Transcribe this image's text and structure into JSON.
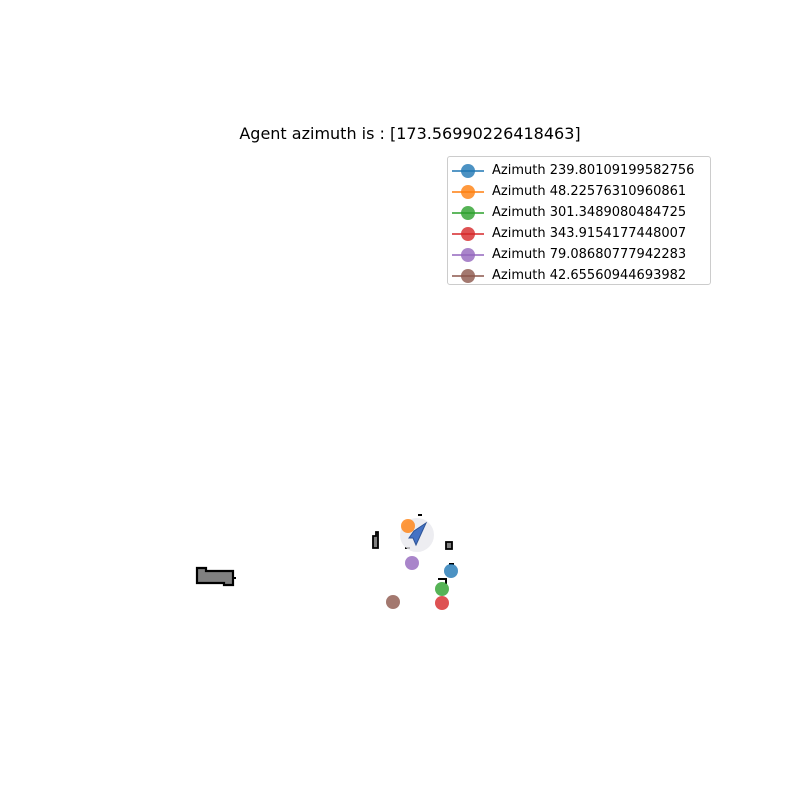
{
  "chart_data": {
    "type": "scatter",
    "title": "Agent azimuth is : [173.56990226418463]",
    "xlabel": "",
    "ylabel": "",
    "grid": false,
    "axes_visible": false,
    "legend_position": "top-right",
    "series": [
      {
        "name": "Azimuth 239.80109199582756",
        "color": "#1f77b4",
        "x": [
          451
        ],
        "y": [
          571
        ]
      },
      {
        "name": "Azimuth 48.22576310960861",
        "color": "#ff7f0e",
        "x": [
          408
        ],
        "y": [
          526
        ]
      },
      {
        "name": "Azimuth 301.3489080484725",
        "color": "#2ca02c",
        "x": [
          442
        ],
        "y": [
          589
        ]
      },
      {
        "name": "Azimuth 343.9154177448007",
        "color": "#d62728",
        "x": [
          442
        ],
        "y": [
          603
        ]
      },
      {
        "name": "Azimuth 79.08680777942283",
        "color": "#9467bd",
        "x": [
          412
        ],
        "y": [
          563
        ]
      },
      {
        "name": "Azimuth 42.65560944693982",
        "color": "#8c564b",
        "x": [
          393
        ],
        "y": [
          602
        ]
      }
    ],
    "agent": {
      "x": 417,
      "y": 535,
      "azimuth": 173.56990226418463,
      "color": "#4472c4"
    }
  }
}
